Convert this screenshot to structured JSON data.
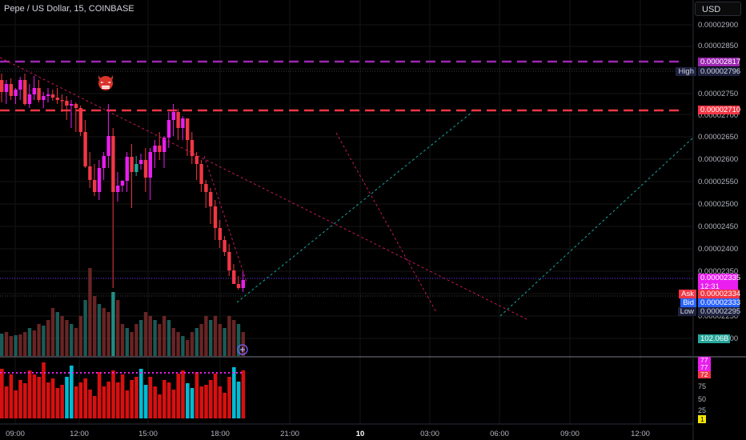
{
  "header": {
    "title": "Pepe / US Dollar, 15, COINBASE"
  },
  "currency_button": {
    "label": "USD"
  },
  "price_axis": {
    "ticks": [
      "0.00002900",
      "0.00002850",
      "0.00002800",
      "0.00002750",
      "0.00002700",
      "0.00002650",
      "0.00002600",
      "0.00002550",
      "0.00002500",
      "0.00002450",
      "0.00002400",
      "0.00002350",
      "0.00002300",
      "0.00002250",
      "0.00002200"
    ]
  },
  "price_labels": {
    "level_purple": "0.00002817",
    "high": "0.00002796",
    "level_red": "0.00002710",
    "last": "0.00002335",
    "countdown": "12:31",
    "ask": "0.00002334",
    "bid": "0.00002333",
    "low": "0.00002295",
    "volume": "102.06B"
  },
  "price_tags": {
    "high": "High",
    "ask": "Ask",
    "bid": "Bid",
    "low": "Low"
  },
  "time_axis": [
    "09:00",
    "12:00",
    "15:00",
    "18:00",
    "21:00",
    "10",
    "03:00",
    "06:00",
    "09:00",
    "12:00"
  ],
  "oscillator_axis": {
    "v1": "77",
    "v2": "77",
    "v3": "72",
    "t75": "75",
    "t50": "50",
    "t25": "25",
    "t0": "0",
    "tag": "1"
  },
  "icons": {
    "emoji": "devil-mask-icon",
    "add": "plus-circle-icon"
  },
  "colors": {
    "up": "#e91eef",
    "down": "#f23645",
    "green": "#26a69a",
    "purple": "#9c27b0",
    "red": "#f23645",
    "background": "#000000"
  }
}
